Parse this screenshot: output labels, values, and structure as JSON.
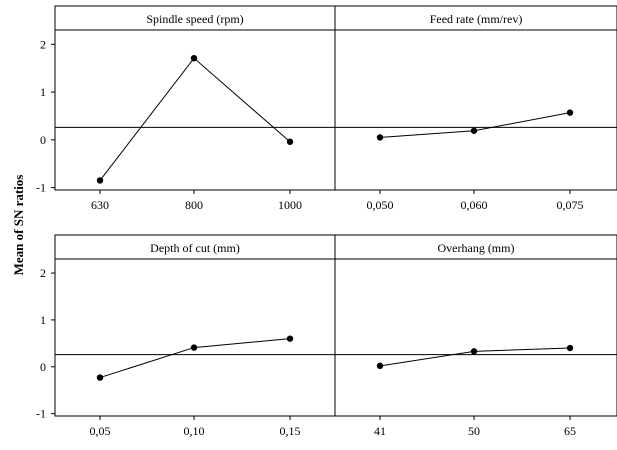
{
  "chart_data": {
    "type": "line",
    "ylabel": "Mean of SN ratios",
    "ylim": [
      -1.05,
      2.3
    ],
    "yticks": [
      -1,
      0,
      1,
      2
    ],
    "reference_line": 0.26,
    "grid": false,
    "panels": [
      {
        "title": "Spindle speed (rpm)",
        "categories": [
          "630",
          "800",
          "1000"
        ],
        "values": [
          -0.85,
          1.71,
          -0.04
        ]
      },
      {
        "title": "Feed rate (mm/rev)",
        "categories": [
          "0,050",
          "0,060",
          "0,075"
        ],
        "values": [
          0.05,
          0.19,
          0.57
        ]
      },
      {
        "title": "Depth of cut (mm)",
        "categories": [
          "0,05",
          "0,10",
          "0,15"
        ],
        "values": [
          -0.23,
          0.41,
          0.6
        ]
      },
      {
        "title": "Overhang (mm)",
        "categories": [
          "41",
          "50",
          "65"
        ],
        "values": [
          0.02,
          0.33,
          0.4
        ]
      }
    ],
    "colors": {
      "line": "#000000",
      "marker": "#000000",
      "frame": "#000000"
    }
  }
}
